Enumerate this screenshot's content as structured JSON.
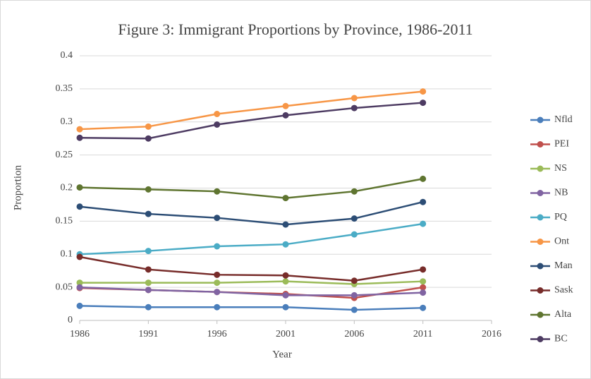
{
  "chart_data": {
    "type": "line",
    "title": "Figure 3: Immigrant Proportions by Province, 1986-2011",
    "x_label": "Year",
    "y_label": "Proportion",
    "x": [
      1986,
      1991,
      1996,
      2001,
      2006,
      2011
    ],
    "xlim": [
      1986,
      2016
    ],
    "xticks": [
      1986,
      1991,
      1996,
      2001,
      2006,
      2011,
      2016
    ],
    "ylim": [
      0,
      0.4
    ],
    "yticks": [
      0,
      0.05,
      0.1,
      0.15,
      0.2,
      0.25,
      0.3,
      0.35,
      0.4
    ],
    "grid": true,
    "legend": "right",
    "series": [
      {
        "name": "Nfld",
        "color": "#4a7ebb",
        "values": [
          0.022,
          0.02,
          0.02,
          0.02,
          0.016,
          0.019
        ]
      },
      {
        "name": "PEI",
        "color": "#c0504d",
        "values": [
          0.049,
          0.046,
          0.043,
          0.04,
          0.034,
          0.05
        ]
      },
      {
        "name": "NS",
        "color": "#9bbb59",
        "values": [
          0.057,
          0.057,
          0.057,
          0.059,
          0.055,
          0.059
        ]
      },
      {
        "name": "NB",
        "color": "#8064a2",
        "values": [
          0.05,
          0.046,
          0.043,
          0.038,
          0.038,
          0.042
        ]
      },
      {
        "name": "PQ",
        "color": "#4bacc6",
        "values": [
          0.1,
          0.105,
          0.112,
          0.115,
          0.13,
          0.146
        ]
      },
      {
        "name": "Ont",
        "color": "#f79646",
        "values": [
          0.289,
          0.293,
          0.312,
          0.324,
          0.336,
          0.346
        ]
      },
      {
        "name": "Man",
        "color": "#2c4d75",
        "values": [
          0.172,
          0.161,
          0.155,
          0.145,
          0.154,
          0.179
        ]
      },
      {
        "name": "Sask",
        "color": "#772c2a",
        "values": [
          0.096,
          0.077,
          0.069,
          0.068,
          0.06,
          0.077
        ]
      },
      {
        "name": "Alta",
        "color": "#5f7530",
        "values": [
          0.201,
          0.198,
          0.195,
          0.185,
          0.195,
          0.214
        ]
      },
      {
        "name": "BC",
        "color": "#4d3b62",
        "values": [
          0.276,
          0.275,
          0.296,
          0.31,
          0.321,
          0.329
        ]
      }
    ]
  }
}
